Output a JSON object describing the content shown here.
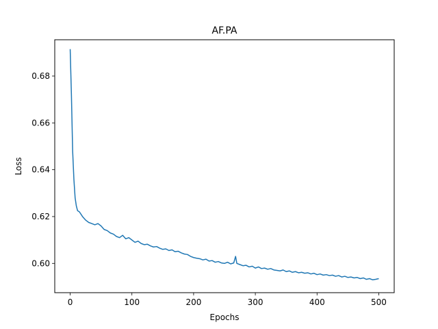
{
  "chart_data": {
    "type": "line",
    "title": "AF.PA",
    "xlabel": "Epochs",
    "ylabel": "Loss",
    "xlim": [
      -25,
      525
    ],
    "ylim": [
      0.5875,
      0.6955
    ],
    "xticks": [
      0,
      100,
      200,
      300,
      400,
      500
    ],
    "yticks": [
      0.6,
      0.62,
      0.64,
      0.66,
      0.68
    ],
    "ytick_labels": [
      "0.60",
      "0.62",
      "0.64",
      "0.66",
      "0.68"
    ],
    "grid": false,
    "legend": "none",
    "series": [
      {
        "color": "#1f77b4",
        "x": [
          0,
          2,
          4,
          6,
          8,
          10,
          12,
          15,
          20,
          25,
          30,
          35,
          40,
          45,
          50,
          55,
          60,
          65,
          70,
          75,
          80,
          85,
          90,
          95,
          100,
          105,
          110,
          115,
          120,
          125,
          130,
          135,
          140,
          145,
          150,
          155,
          160,
          165,
          170,
          175,
          180,
          185,
          190,
          195,
          200,
          205,
          210,
          215,
          220,
          225,
          230,
          235,
          240,
          245,
          250,
          255,
          260,
          265,
          268,
          270,
          275,
          280,
          285,
          290,
          295,
          300,
          305,
          310,
          315,
          320,
          325,
          330,
          335,
          340,
          345,
          350,
          355,
          360,
          365,
          370,
          375,
          380,
          385,
          390,
          395,
          400,
          405,
          410,
          415,
          420,
          425,
          430,
          435,
          440,
          445,
          450,
          455,
          460,
          465,
          470,
          475,
          480,
          485,
          490,
          495,
          500
        ],
        "y": [
          0.6915,
          0.672,
          0.648,
          0.636,
          0.628,
          0.6245,
          0.6225,
          0.622,
          0.62,
          0.6185,
          0.6175,
          0.617,
          0.6165,
          0.617,
          0.616,
          0.6145,
          0.614,
          0.613,
          0.6125,
          0.6115,
          0.611,
          0.612,
          0.6105,
          0.611,
          0.61,
          0.609,
          0.6095,
          0.6085,
          0.608,
          0.6082,
          0.6075,
          0.607,
          0.6072,
          0.6065,
          0.606,
          0.6062,
          0.6055,
          0.6058,
          0.605,
          0.6052,
          0.6045,
          0.604,
          0.6038,
          0.603,
          0.6025,
          0.6022,
          0.602,
          0.6015,
          0.6018,
          0.601,
          0.6012,
          0.6005,
          0.6008,
          0.6002,
          0.6,
          0.6005,
          0.5998,
          0.6002,
          0.603,
          0.6,
          0.5995,
          0.599,
          0.5992,
          0.5985,
          0.5988,
          0.598,
          0.5985,
          0.5978,
          0.598,
          0.5975,
          0.5978,
          0.5972,
          0.597,
          0.5968,
          0.5972,
          0.5965,
          0.5968,
          0.5962,
          0.5965,
          0.596,
          0.5962,
          0.5958,
          0.596,
          0.5955,
          0.5958,
          0.5952,
          0.5955,
          0.595,
          0.5952,
          0.5948,
          0.595,
          0.5945,
          0.5948,
          0.5942,
          0.5945,
          0.594,
          0.5942,
          0.5938,
          0.594,
          0.5935,
          0.5938,
          0.5932,
          0.5935,
          0.593,
          0.5932,
          0.5935
        ]
      }
    ]
  }
}
